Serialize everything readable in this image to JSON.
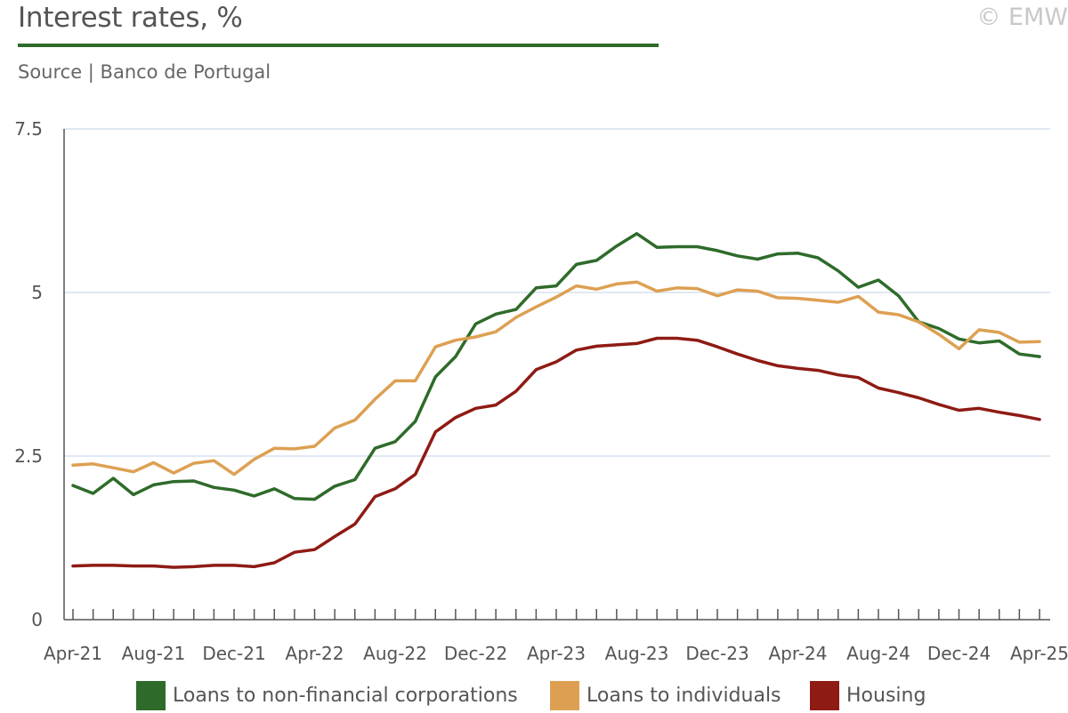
{
  "header": {
    "title": "Interest rates, %",
    "subtitle": "Source | Banco de Portugal",
    "copyright": "© EMW"
  },
  "colors": {
    "accent": "#2e6b2a",
    "grid": "#d6e2ef",
    "axis": "#555555"
  },
  "chart_data": {
    "type": "line",
    "title": "Interest rates, %",
    "xlabel": "",
    "ylabel": "",
    "ylim": [
      0,
      7.5
    ],
    "yticks": [
      0,
      2.5,
      5,
      7.5
    ],
    "ytick_labels": [
      "0",
      "2.5",
      "5",
      "7.5"
    ],
    "grid": true,
    "legend_position": "bottom",
    "x": [
      "Apr-21",
      "May-21",
      "Jun-21",
      "Jul-21",
      "Aug-21",
      "Sep-21",
      "Oct-21",
      "Nov-21",
      "Dec-21",
      "Jan-22",
      "Feb-22",
      "Mar-22",
      "Apr-22",
      "May-22",
      "Jun-22",
      "Jul-22",
      "Aug-22",
      "Sep-22",
      "Oct-22",
      "Nov-22",
      "Dec-22",
      "Jan-23",
      "Feb-23",
      "Mar-23",
      "Apr-23",
      "May-23",
      "Jun-23",
      "Jul-23",
      "Aug-23",
      "Sep-23",
      "Oct-23",
      "Nov-23",
      "Dec-23",
      "Jan-24",
      "Feb-24",
      "Mar-24",
      "Apr-24",
      "May-24",
      "Jun-24",
      "Jul-24",
      "Aug-24",
      "Sep-24",
      "Oct-24",
      "Nov-24",
      "Dec-24",
      "Jan-25",
      "Feb-25",
      "Mar-25",
      "Apr-25"
    ],
    "x_tick_labels": [
      "Apr-21",
      "Aug-21",
      "Dec-21",
      "Apr-22",
      "Aug-22",
      "Dec-22",
      "Apr-23",
      "Aug-23",
      "Dec-23",
      "Apr-24",
      "Aug-24",
      "Dec-24",
      "Apr-25"
    ],
    "series": [
      {
        "name": "Loans to non-financial corporations",
        "color": "#2e6b2a",
        "values": [
          2.05,
          1.93,
          2.16,
          1.91,
          2.06,
          2.11,
          2.12,
          2.02,
          1.98,
          1.89,
          2.0,
          1.85,
          1.84,
          2.04,
          2.14,
          2.62,
          2.72,
          3.03,
          3.71,
          4.02,
          4.52,
          4.67,
          4.74,
          5.07,
          5.1,
          5.43,
          5.49,
          5.71,
          5.9,
          5.69,
          5.7,
          5.7,
          5.64,
          5.56,
          5.51,
          5.59,
          5.6,
          5.53,
          5.33,
          5.08,
          5.19,
          4.95,
          4.55,
          4.45,
          4.29,
          4.23,
          4.26,
          4.06,
          4.02
        ]
      },
      {
        "name": "Loans to individuals",
        "color": "#dda052",
        "values": [
          2.36,
          2.38,
          2.32,
          2.26,
          2.4,
          2.24,
          2.39,
          2.43,
          2.22,
          2.45,
          2.62,
          2.61,
          2.65,
          2.93,
          3.05,
          3.37,
          3.65,
          3.65,
          4.17,
          4.27,
          4.32,
          4.4,
          4.62,
          4.78,
          4.93,
          5.1,
          5.05,
          5.13,
          5.16,
          5.02,
          5.07,
          5.06,
          4.95,
          5.04,
          5.02,
          4.92,
          4.91,
          4.88,
          4.85,
          4.94,
          4.7,
          4.66,
          4.55,
          4.36,
          4.14,
          4.43,
          4.39,
          4.24,
          4.25
        ]
      },
      {
        "name": "Housing",
        "color": "#8e1b14",
        "values": [
          0.82,
          0.83,
          0.83,
          0.82,
          0.82,
          0.8,
          0.81,
          0.83,
          0.83,
          0.81,
          0.87,
          1.03,
          1.07,
          1.27,
          1.46,
          1.88,
          2.0,
          2.22,
          2.87,
          3.09,
          3.23,
          3.28,
          3.49,
          3.82,
          3.94,
          4.12,
          4.18,
          4.2,
          4.22,
          4.3,
          4.3,
          4.27,
          4.17,
          4.06,
          3.96,
          3.88,
          3.84,
          3.81,
          3.74,
          3.7,
          3.54,
          3.47,
          3.39,
          3.29,
          3.2,
          3.23,
          3.17,
          3.12,
          3.06
        ]
      }
    ]
  }
}
